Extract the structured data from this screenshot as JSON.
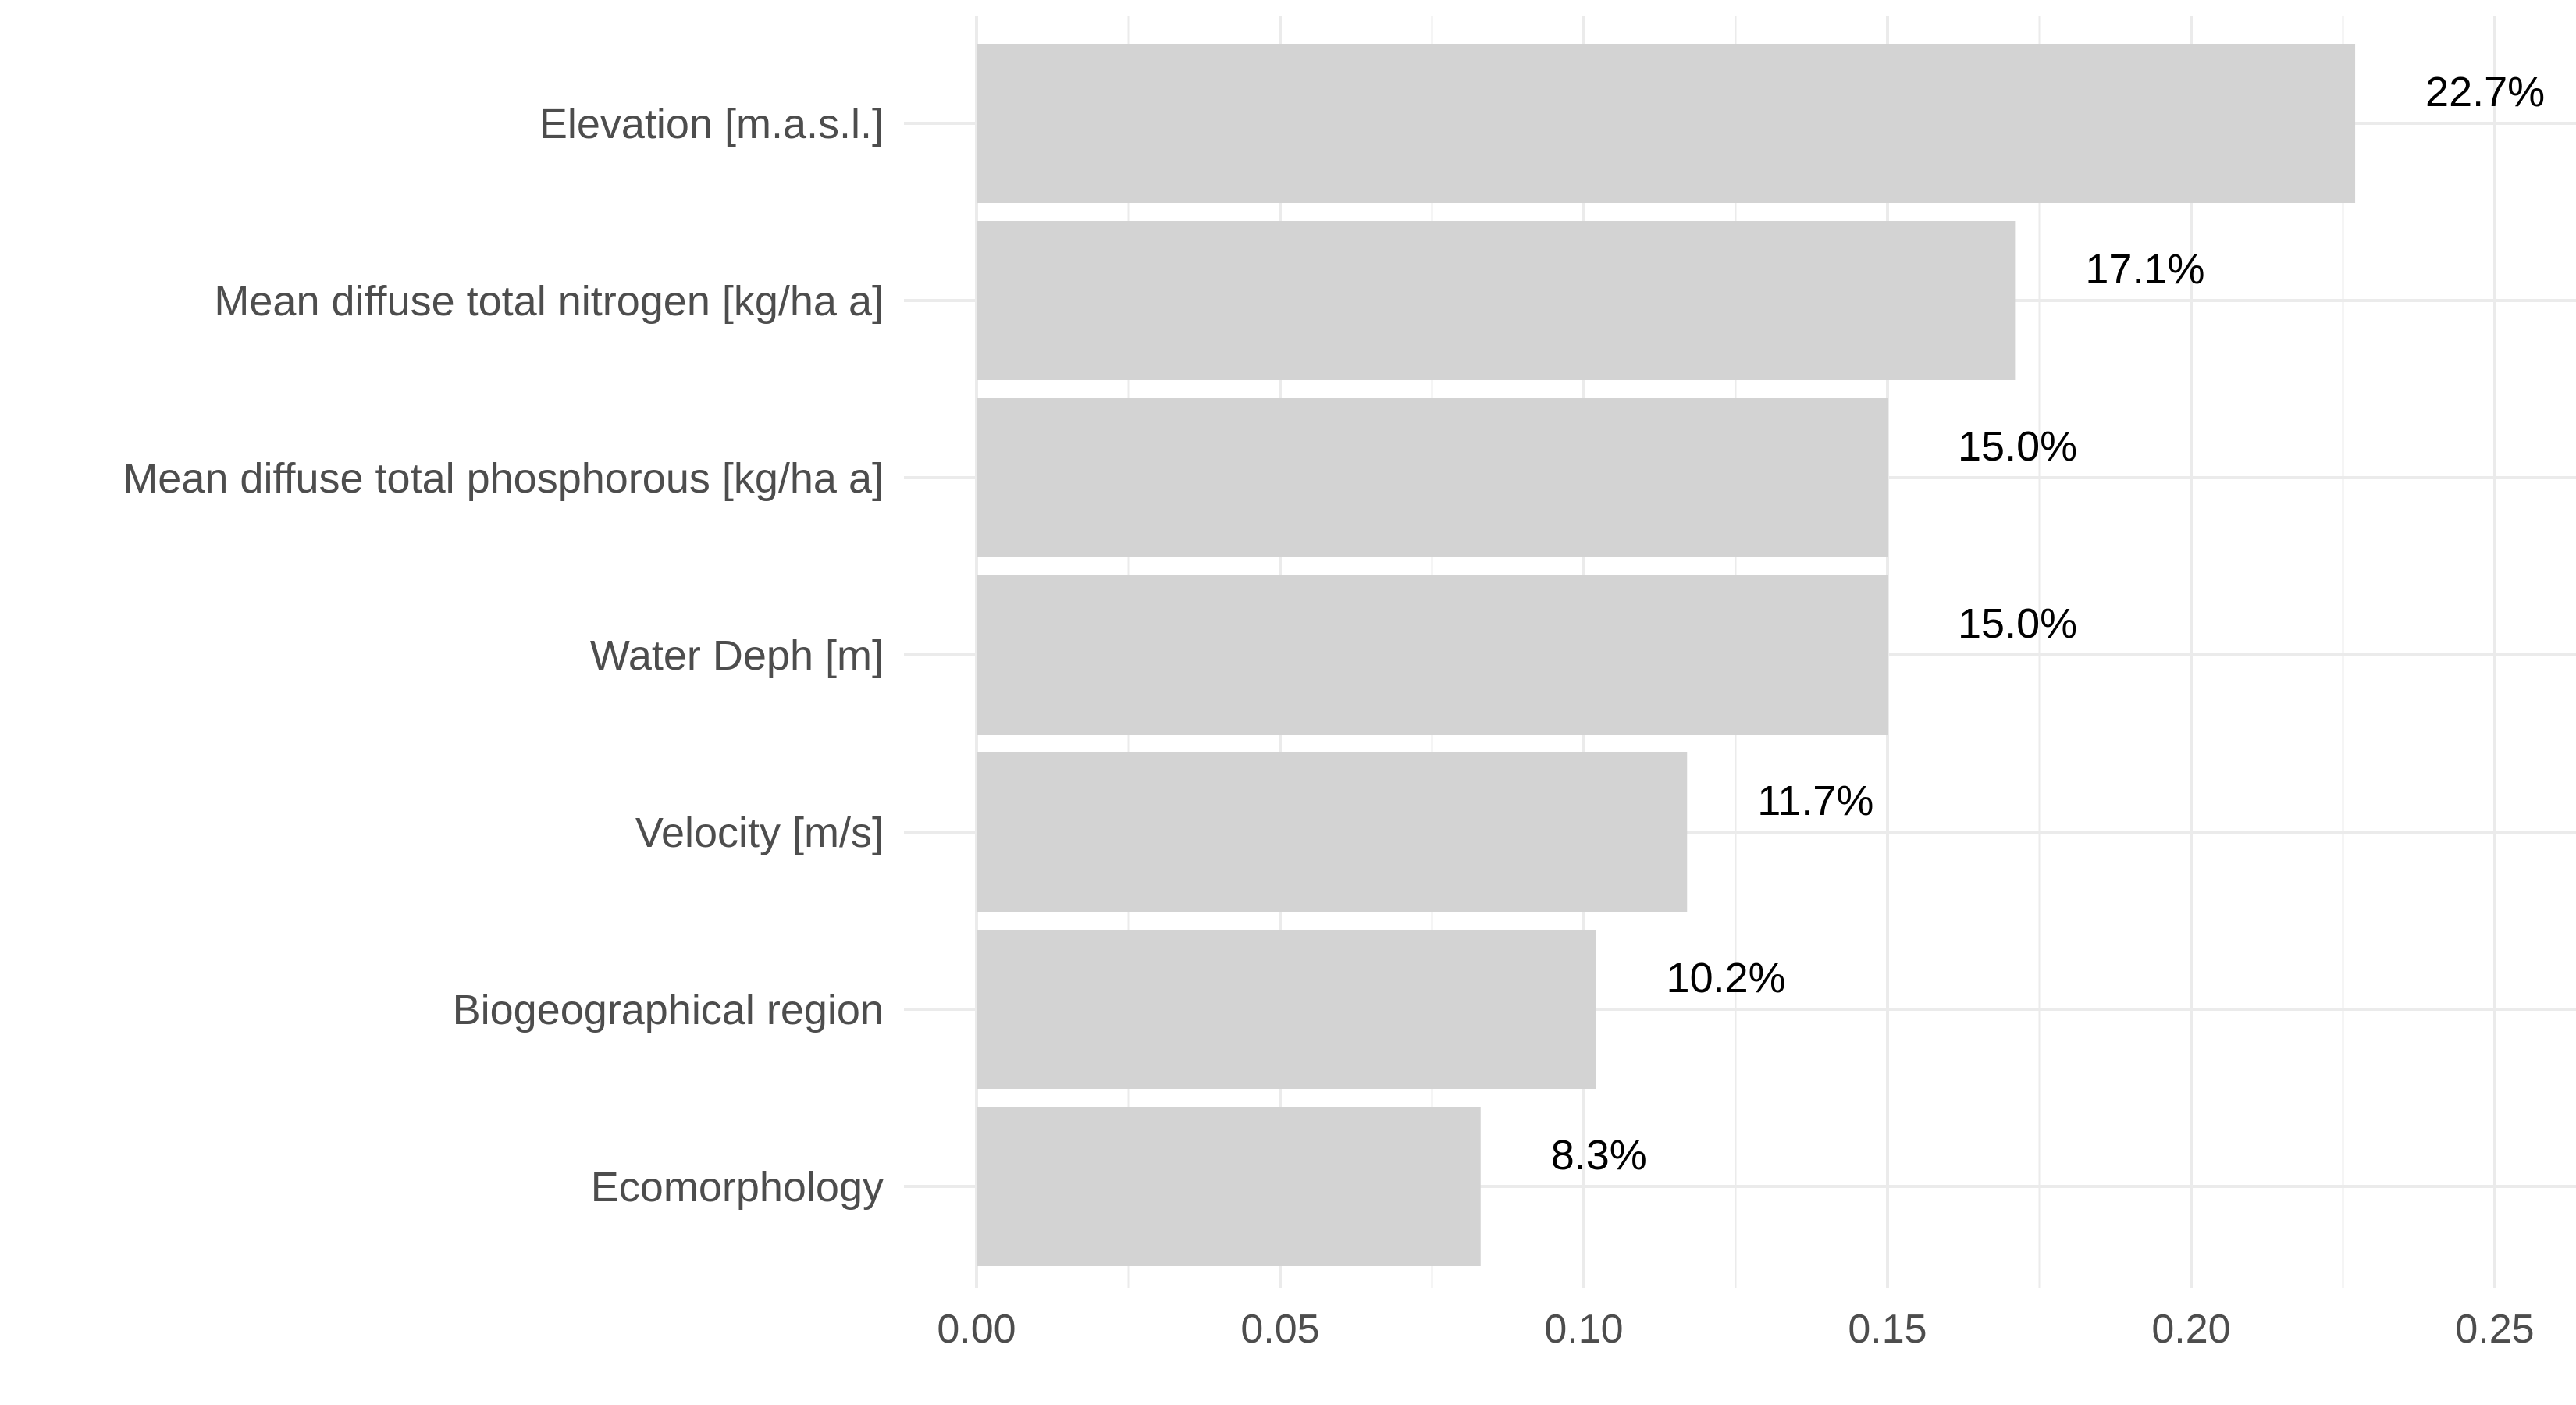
{
  "chart_data": {
    "type": "bar",
    "orientation": "horizontal",
    "categories": [
      "Elevation [m.a.s.l.]",
      "Mean diffuse total nitrogen [kg/ha a]",
      "Mean diffuse total phosphorous [kg/ha a]",
      "Water Deph [m]",
      "Velocity [m/s]",
      "Biogeographical region",
      "Ecomorphology"
    ],
    "values": [
      0.227,
      0.171,
      0.15,
      0.15,
      0.117,
      0.102,
      0.083
    ],
    "data_labels": [
      "22.7%",
      "17.1%",
      "15.0%",
      "15.0%",
      "11.7%",
      "10.2%",
      "8.3%"
    ],
    "x_ticks": [
      0.0,
      0.05,
      0.1,
      0.15,
      0.2,
      0.25
    ],
    "x_tick_labels": [
      "0.00",
      "0.05",
      "0.10",
      "0.15",
      "0.20",
      "0.25"
    ],
    "xlim": [
      0,
      0.26
    ],
    "title": "",
    "xlabel": "",
    "ylabel": "",
    "grid": true,
    "legend": "none",
    "colors": {
      "bar": "#d3d3d3",
      "grid": "#ebebeb",
      "axis_text": "#4d4d4d",
      "label_text": "#000000"
    }
  }
}
